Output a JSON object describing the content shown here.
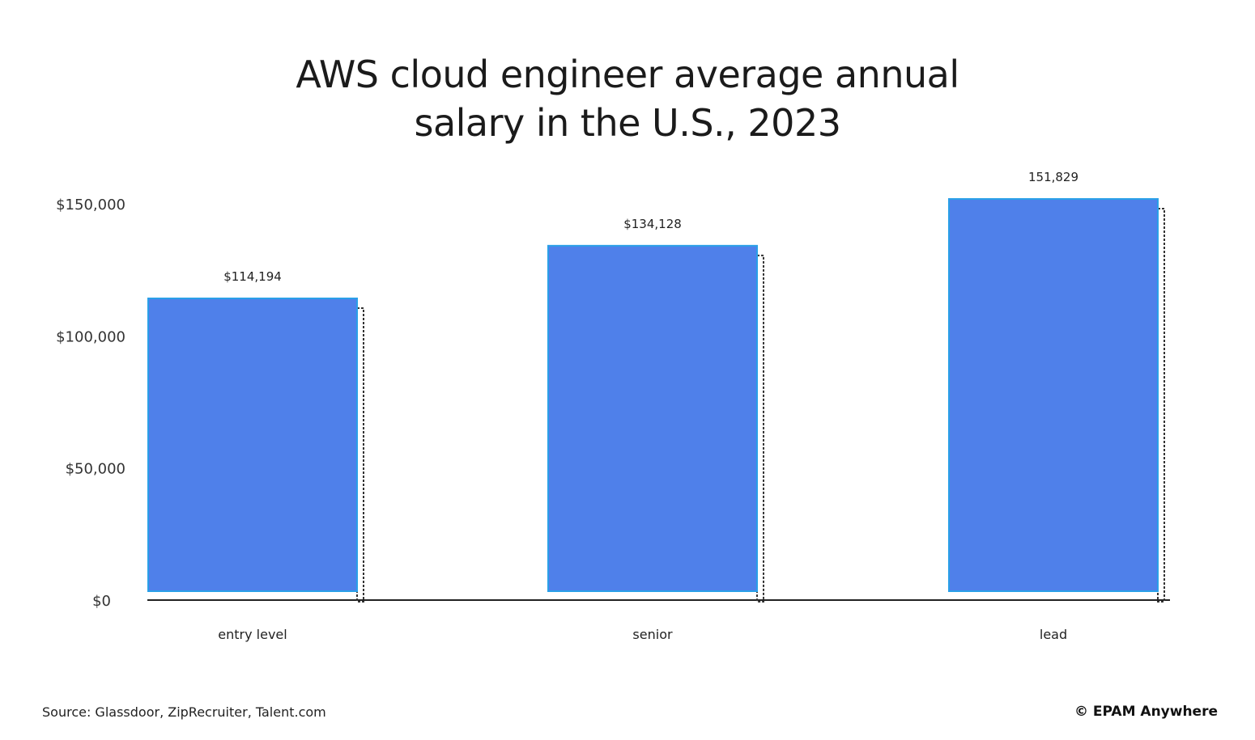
{
  "chart_data": {
    "type": "bar",
    "title": "AWS cloud engineer average annual salary in the U.S., 2023",
    "categories": [
      "entry level",
      "senior",
      "lead"
    ],
    "values": [
      114194,
      134128,
      151829
    ],
    "data_labels": [
      "$114,194",
      "$134,128",
      "151,829"
    ],
    "yticks": [
      0,
      50000,
      100000,
      150000
    ],
    "ytick_labels": [
      "$0",
      "$50,000",
      "$100,000",
      "$150,000"
    ],
    "ylim": [
      0,
      150000
    ],
    "grid": false,
    "bar_color": "#4f80ea"
  },
  "footer": {
    "source": "Source: Glassdoor, ZipRecruiter, Talent.com",
    "brand": "© EPAM Anywhere"
  }
}
